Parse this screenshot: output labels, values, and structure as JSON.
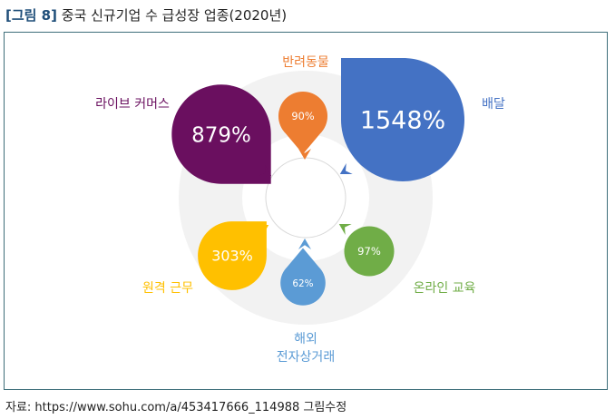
{
  "figure": {
    "number": "[그림 8]",
    "title": "중국 신규기업 수 급성장 업종(2020년)"
  },
  "source": "자료: https://www.sohu.com/a/453417666_114988 그림수정",
  "chart_data": {
    "type": "bubble",
    "unit": "%",
    "categories": [
      "반려동물",
      "배달",
      "온라인 교육",
      "해외 전자상거래",
      "원격 근무",
      "라이브 커머스"
    ],
    "values": [
      90,
      1548,
      97,
      62,
      303,
      879
    ],
    "value_labels": [
      "90%",
      "1548%",
      "97%",
      "62%",
      "303%",
      "879%"
    ],
    "category_lines": [
      [
        "반려동물"
      ],
      [
        "배달"
      ],
      [
        "온라인 교육"
      ],
      [
        "해외",
        "전자상거래"
      ],
      [
        "원격 근무"
      ],
      [
        "라이브 커머스"
      ]
    ],
    "colors": [
      "#ed7d31",
      "#4472c4",
      "#70ad47",
      "#5b9bd5",
      "#ffc000",
      "#6a0f5f"
    ]
  }
}
